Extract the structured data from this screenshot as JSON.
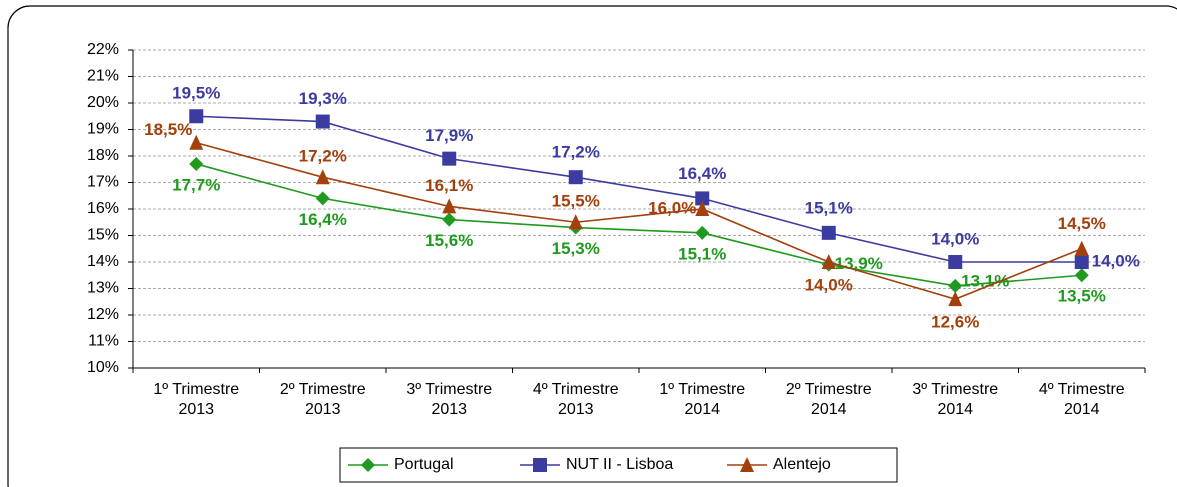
{
  "chart_data": {
    "type": "line",
    "categories": [
      [
        "1º Trimestre",
        "2013"
      ],
      [
        "2º Trimestre",
        "2013"
      ],
      [
        "3º Trimestre",
        "2013"
      ],
      [
        "4º Trimestre",
        "2013"
      ],
      [
        "1º Trimestre",
        "2014"
      ],
      [
        "2º Trimestre",
        "2014"
      ],
      [
        "3º Trimestre",
        "2014"
      ],
      [
        "4º Trimestre",
        "2014"
      ]
    ],
    "series": [
      {
        "name": "Portugal",
        "color": "#1f9a1f",
        "marker": "diamond",
        "values": [
          17.7,
          16.4,
          15.6,
          15.3,
          15.1,
          13.9,
          13.1,
          13.5
        ],
        "value_labels": [
          "17,7%",
          "16,4%",
          "15,6%",
          "15,3%",
          "15,1%",
          "13,9%",
          "13,1%",
          "13,5%"
        ]
      },
      {
        "name": "NUT II - Lisboa",
        "color": "#3c3ca0",
        "marker": "square",
        "values": [
          19.5,
          19.3,
          17.9,
          17.2,
          16.4,
          15.1,
          14.0,
          14.0
        ],
        "value_labels": [
          "19,5%",
          "19,3%",
          "17,9%",
          "17,2%",
          "16,4%",
          "15,1%",
          "14,0%",
          "14,0%"
        ]
      },
      {
        "name": "Alentejo",
        "color": "#a3400c",
        "marker": "triangle",
        "values": [
          18.5,
          17.2,
          16.1,
          15.5,
          16.0,
          14.0,
          12.6,
          14.5
        ],
        "value_labels": [
          "18,5%",
          "17,2%",
          "16,1%",
          "15,5%",
          "16,0%",
          "14,0%",
          "12,6%",
          "14,5%"
        ]
      }
    ],
    "ylim": [
      10,
      22
    ],
    "yticks": [
      {
        "value": 10,
        "label": "10%"
      },
      {
        "value": 11,
        "label": "11%"
      },
      {
        "value": 12,
        "label": "12%"
      },
      {
        "value": 13,
        "label": "13%"
      },
      {
        "value": 14,
        "label": "14%"
      },
      {
        "value": 15,
        "label": "15%"
      },
      {
        "value": 16,
        "label": "16%"
      },
      {
        "value": 17,
        "label": "17%"
      },
      {
        "value": 18,
        "label": "18%"
      },
      {
        "value": 19,
        "label": "19%"
      },
      {
        "value": 20,
        "label": "20%"
      },
      {
        "value": 21,
        "label": "21%"
      },
      {
        "value": 22,
        "label": "22%"
      }
    ],
    "grid": true,
    "legend": "bottom"
  }
}
